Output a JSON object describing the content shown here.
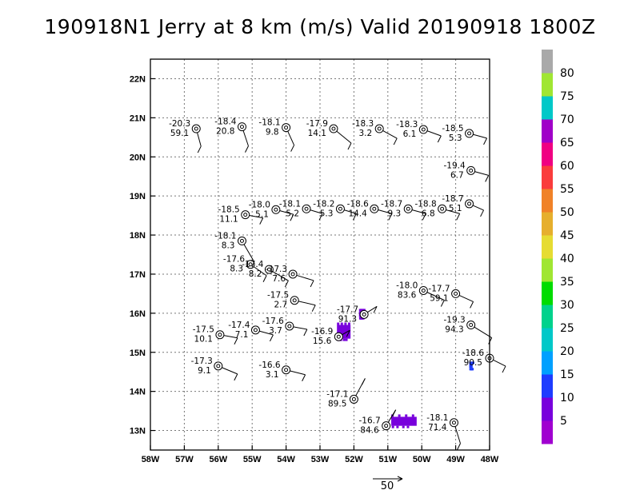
{
  "chart_data": {
    "type": "scatter",
    "title": "190918N1 Jerry at 8 km (m/s) Valid 20190918  1800Z",
    "xlim": [
      -58,
      -48
    ],
    "ylim": [
      12.5,
      22.5
    ],
    "x_ticks": [
      -58,
      -57,
      -56,
      -55,
      -54,
      -53,
      -52,
      -51,
      -50,
      -49,
      -48
    ],
    "x_tick_labels": [
      "58W",
      "57W",
      "56W",
      "55W",
      "54W",
      "53W",
      "52W",
      "51W",
      "50W",
      "49W",
      "48W"
    ],
    "y_ticks": [
      13,
      14,
      15,
      16,
      17,
      18,
      19,
      20,
      21,
      22
    ],
    "y_tick_labels": [
      "13N",
      "14N",
      "15N",
      "16N",
      "17N",
      "18N",
      "19N",
      "20N",
      "21N",
      "22N"
    ],
    "grid": true,
    "scale_vector_label": "50",
    "colorbar": {
      "labels": [
        "5",
        "10",
        "15",
        "20",
        "25",
        "30",
        "35",
        "40",
        "45",
        "50",
        "55",
        "60",
        "65",
        "70",
        "75",
        "80"
      ],
      "colors": [
        "#a000d0",
        "#7800dc",
        "#1e3cff",
        "#00a0ff",
        "#00c8c8",
        "#00d28c",
        "#00dc00",
        "#a0e632",
        "#e6dc32",
        "#e6af2d",
        "#f08228",
        "#fa3c3c",
        "#f00082",
        "#a000c8",
        "#00c8c8",
        "#a0e632",
        "#a9a9a9"
      ]
    },
    "points": [
      {
        "lon": -56.65,
        "lat": 20.72,
        "top": "-20.3",
        "bottom": "59.1"
      },
      {
        "lon": -55.3,
        "lat": 20.77,
        "top": "-18.4",
        "bottom": "20.8"
      },
      {
        "lon": -54.0,
        "lat": 20.75,
        "top": "-18.1",
        "bottom": "9.8"
      },
      {
        "lon": -52.6,
        "lat": 20.72,
        "top": "-17.9",
        "bottom": "14.1"
      },
      {
        "lon": -51.25,
        "lat": 20.72,
        "top": "-18.3",
        "bottom": "3.2"
      },
      {
        "lon": -49.95,
        "lat": 20.7,
        "top": "-18.3",
        "bottom": "6.1"
      },
      {
        "lon": -48.6,
        "lat": 20.6,
        "top": "-18.5",
        "bottom": "5.3"
      },
      {
        "lon": -48.55,
        "lat": 19.65,
        "top": "-19.4",
        "bottom": "6.7"
      },
      {
        "lon": -48.6,
        "lat": 18.8,
        "top": "-18.7",
        "bottom": "5.1"
      },
      {
        "lon": -49.4,
        "lat": 18.67,
        "top": "-18.8",
        "bottom": "6.8"
      },
      {
        "lon": -50.4,
        "lat": 18.67,
        "top": "-18.7",
        "bottom": "9.3"
      },
      {
        "lon": -51.4,
        "lat": 18.67,
        "top": "-18.6",
        "bottom": "14.4"
      },
      {
        "lon": -52.4,
        "lat": 18.67,
        "top": "-18.2",
        "bottom": "5.3"
      },
      {
        "lon": -53.4,
        "lat": 18.67,
        "top": "-18.1",
        "bottom": "5.2"
      },
      {
        "lon": -54.3,
        "lat": 18.65,
        "top": "-18.0",
        "bottom": "5.1"
      },
      {
        "lon": -55.2,
        "lat": 18.52,
        "top": "-18.5",
        "bottom": "11.1"
      },
      {
        "lon": -55.3,
        "lat": 17.85,
        "top": "-18.1",
        "bottom": "8.3"
      },
      {
        "lon": -55.05,
        "lat": 17.25,
        "top": "-17.6",
        "bottom": "8.3"
      },
      {
        "lon": -54.5,
        "lat": 17.12,
        "top": "-17.4",
        "bottom": "8.2"
      },
      {
        "lon": -53.8,
        "lat": 17.0,
        "top": "-17.3",
        "bottom": "7.6"
      },
      {
        "lon": -53.75,
        "lat": 16.33,
        "top": "-17.5",
        "bottom": "2.7"
      },
      {
        "lon": -51.7,
        "lat": 15.97,
        "top": "-17.7",
        "bottom": "91.3"
      },
      {
        "lon": -49.95,
        "lat": 16.58,
        "top": "-18.0",
        "bottom": "83.6"
      },
      {
        "lon": -49.0,
        "lat": 16.5,
        "top": "-17.7",
        "bottom": "59.1"
      },
      {
        "lon": -48.55,
        "lat": 15.7,
        "top": "-19.3",
        "bottom": "94.3"
      },
      {
        "lon": -48.0,
        "lat": 14.85,
        "top": "-18.6",
        "bottom": "90.5"
      },
      {
        "lon": -53.9,
        "lat": 15.67,
        "top": "-17.6",
        "bottom": "3.7"
      },
      {
        "lon": -54.9,
        "lat": 15.57,
        "top": "-17.4",
        "bottom": "7.1"
      },
      {
        "lon": -55.95,
        "lat": 15.45,
        "top": "-17.5",
        "bottom": "10.1"
      },
      {
        "lon": -52.45,
        "lat": 15.4,
        "top": "-16.9",
        "bottom": "15.6"
      },
      {
        "lon": -56.0,
        "lat": 14.65,
        "top": "-17.3",
        "bottom": "9.1"
      },
      {
        "lon": -54.0,
        "lat": 14.55,
        "top": "-16.6",
        "bottom": "3.1"
      },
      {
        "lon": -52.0,
        "lat": 13.8,
        "top": "-17.1",
        "bottom": "89.5"
      },
      {
        "lon": -51.05,
        "lat": 13.12,
        "top": "-16.7",
        "bottom": "84.6"
      },
      {
        "lon": -49.05,
        "lat": 13.2,
        "top": "-18.1",
        "bottom": "71.4"
      }
    ],
    "shaded_areas": [
      {
        "lon": [
          -52.5,
          -52.1
        ],
        "lat": [
          15.35,
          15.7
        ],
        "value_range": "65-70"
      },
      {
        "lon": [
          -50.9,
          -50.15
        ],
        "lat": [
          13.12,
          13.35
        ],
        "value_range": "65-70"
      },
      {
        "lon": [
          -51.85,
          -51.7
        ],
        "lat": [
          15.9,
          16.05
        ],
        "value_range": "65-70"
      },
      {
        "lon": [
          -48.6,
          -48.5
        ],
        "lat": [
          14.6,
          14.7
        ],
        "value_range": "10-15"
      }
    ]
  }
}
